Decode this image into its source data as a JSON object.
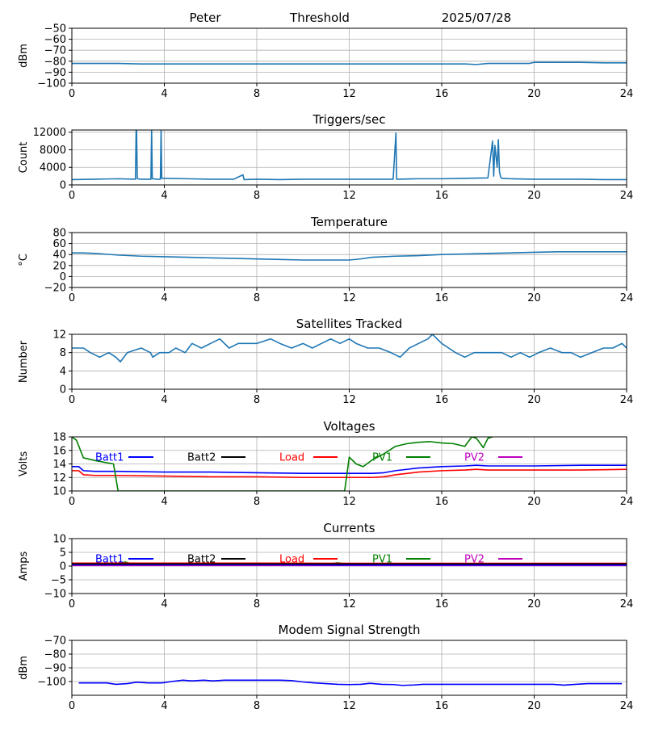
{
  "header": {
    "site": "Peter",
    "mode": "Threshold",
    "date": "2025/07/28"
  },
  "chart_data": [
    {
      "id": "threshold",
      "type": "line",
      "title": "",
      "ylabel": "dBm",
      "xlim": [
        0,
        24
      ],
      "ylim": [
        -100,
        -50
      ],
      "xticks": [
        0,
        4,
        8,
        12,
        16,
        20,
        24
      ],
      "yticks": [
        -100,
        -90,
        -80,
        -70,
        -60,
        -50
      ],
      "grid": true,
      "series": [
        {
          "color": "#1f77b4",
          "x": [
            0,
            1,
            2,
            3,
            4,
            5,
            6,
            7,
            8,
            9,
            10,
            11,
            12,
            13,
            14,
            15,
            16,
            17,
            17.5,
            18,
            19,
            19.8,
            20,
            21,
            22,
            23,
            24
          ],
          "y": [
            -82,
            -82,
            -82,
            -82.5,
            -82.5,
            -82.5,
            -82.5,
            -82.5,
            -82.5,
            -82.5,
            -82.5,
            -82.5,
            -82.5,
            -82.5,
            -82.5,
            -82.5,
            -82.5,
            -82.5,
            -83,
            -82,
            -82,
            -82,
            -81,
            -81,
            -81,
            -81.5,
            -81.5
          ]
        }
      ]
    },
    {
      "id": "triggers",
      "type": "line",
      "title": "Triggers/sec",
      "ylabel": "Count",
      "xlim": [
        0,
        24
      ],
      "ylim": [
        0,
        12500
      ],
      "xticks": [
        0,
        4,
        8,
        12,
        16,
        20,
        24
      ],
      "yticks": [
        0,
        4000,
        8000,
        12000
      ],
      "grid": true,
      "series": [
        {
          "color": "#1f77b4",
          "x": [
            0,
            1,
            2,
            2.75,
            2.78,
            2.8,
            2.83,
            3,
            3.42,
            3.45,
            3.48,
            3.7,
            3.83,
            3.86,
            3.89,
            4,
            5,
            6,
            7,
            7.4,
            7.45,
            8,
            9,
            10,
            11,
            12,
            13,
            13.9,
            14.02,
            14.05,
            14.08,
            15,
            16,
            17,
            18,
            18.2,
            18.25,
            18.3,
            18.4,
            18.45,
            18.5,
            18.55,
            18.6,
            19,
            20,
            21,
            22,
            23,
            24
          ],
          "y": [
            1200,
            1300,
            1400,
            1300,
            12500,
            12500,
            1400,
            1300,
            1300,
            12500,
            1400,
            1300,
            1300,
            12500,
            1500,
            1500,
            1400,
            1300,
            1300,
            2300,
            1200,
            1300,
            1200,
            1300,
            1300,
            1300,
            1300,
            1300,
            11800,
            1300,
            1300,
            1400,
            1400,
            1500,
            1600,
            10000,
            2000,
            9000,
            4000,
            10300,
            3000,
            1800,
            1500,
            1400,
            1300,
            1300,
            1300,
            1200,
            1200
          ]
        }
      ]
    },
    {
      "id": "temperature",
      "type": "line",
      "title": "Temperature",
      "ylabel": "°C",
      "xlim": [
        0,
        24
      ],
      "ylim": [
        -20,
        80
      ],
      "xticks": [
        0,
        4,
        8,
        12,
        16,
        20,
        24
      ],
      "yticks": [
        -20,
        0,
        20,
        40,
        60,
        80
      ],
      "grid": true,
      "series": [
        {
          "color": "#1f77b4",
          "x": [
            0,
            0.5,
            1,
            2,
            3,
            4,
            5,
            6,
            7,
            8,
            9,
            10,
            11,
            12,
            12.5,
            13,
            14,
            15,
            16,
            17,
            18,
            19,
            20,
            21,
            22,
            23,
            24
          ],
          "y": [
            43,
            43,
            42,
            39,
            37,
            36,
            35,
            34,
            33,
            32,
            31,
            30,
            30,
            30,
            32,
            35,
            37,
            38,
            40,
            41,
            42,
            43,
            44,
            45,
            45,
            45,
            45
          ]
        }
      ]
    },
    {
      "id": "satellites",
      "type": "line",
      "title": "Satellites Tracked",
      "ylabel": "Number",
      "xlim": [
        0,
        24
      ],
      "ylim": [
        0,
        12
      ],
      "xticks": [
        0,
        4,
        8,
        12,
        16,
        20,
        24
      ],
      "yticks": [
        0,
        4,
        8,
        12
      ],
      "grid": true,
      "series": [
        {
          "color": "#1f77b4",
          "x": [
            0,
            0.5,
            0.8,
            1.2,
            1.6,
            1.9,
            2.1,
            2.4,
            3,
            3.4,
            3.5,
            3.8,
            4.2,
            4.5,
            4.9,
            5.2,
            5.6,
            6,
            6.4,
            6.8,
            7.2,
            7.6,
            8,
            8.6,
            9,
            9.5,
            10,
            10.4,
            10.8,
            11.2,
            11.6,
            12,
            12.3,
            12.8,
            13.3,
            13.8,
            14.2,
            14.6,
            15,
            15.4,
            15.6,
            16,
            16.3,
            16.6,
            17,
            17.4,
            17.8,
            18.2,
            18.6,
            19,
            19.4,
            19.8,
            20.2,
            20.7,
            21.2,
            21.6,
            22,
            22.5,
            23,
            23.4,
            23.8,
            24
          ],
          "y": [
            9,
            9,
            8,
            7,
            8,
            7,
            6,
            8,
            9,
            8,
            7,
            8,
            8,
            9,
            8,
            10,
            9,
            10,
            11,
            9,
            10,
            10,
            10,
            11,
            10,
            9,
            10,
            9,
            10,
            11,
            10,
            11,
            10,
            9,
            9,
            8,
            7,
            9,
            10,
            11,
            12,
            10,
            9,
            8,
            7,
            8,
            8,
            8,
            8,
            7,
            8,
            7,
            8,
            9,
            8,
            8,
            7,
            8,
            9,
            9,
            10,
            9
          ]
        }
      ]
    },
    {
      "id": "voltages",
      "type": "line",
      "title": "Voltages",
      "ylabel": "Volts",
      "xlim": [
        0,
        24
      ],
      "ylim": [
        10,
        18
      ],
      "xticks": [
        0,
        4,
        8,
        12,
        16,
        20,
        24
      ],
      "yticks": [
        10,
        12,
        14,
        16,
        18
      ],
      "grid": true,
      "legend": [
        "Batt1",
        "Batt2",
        "Load",
        "PV1",
        "PV2"
      ],
      "series": [
        {
          "name": "Batt1",
          "color": "#0000ff",
          "x": [
            0,
            0.3,
            0.5,
            1,
            2,
            4,
            6,
            8,
            10,
            12,
            13,
            13.5,
            14,
            15,
            16,
            17,
            17.5,
            18,
            19,
            20,
            22,
            24
          ],
          "y": [
            13.6,
            13.6,
            13.0,
            12.9,
            12.9,
            12.8,
            12.8,
            12.7,
            12.6,
            12.6,
            12.6,
            12.7,
            13.0,
            13.4,
            13.6,
            13.7,
            13.8,
            13.7,
            13.7,
            13.7,
            13.8,
            13.8
          ]
        },
        {
          "name": "Load",
          "color": "#ff0000",
          "x": [
            0,
            0.3,
            0.5,
            1,
            2,
            4,
            6,
            8,
            10,
            12,
            13,
            13.5,
            14,
            15,
            16,
            17,
            17.5,
            18,
            19,
            20,
            22,
            24
          ],
          "y": [
            13.0,
            13.0,
            12.4,
            12.3,
            12.3,
            12.2,
            12.1,
            12.1,
            12.0,
            12.0,
            12.0,
            12.1,
            12.4,
            12.8,
            13.0,
            13.1,
            13.2,
            13.1,
            13.1,
            13.1,
            13.1,
            13.2
          ]
        },
        {
          "name": "PV1",
          "color": "#008000",
          "x": [
            0,
            0.2,
            0.5,
            1,
            1.8,
            2.0,
            11.8,
            12.0,
            12.3,
            12.6,
            13.0,
            13.5,
            14,
            14.5,
            15,
            15.5,
            16,
            16.5,
            17,
            17.3,
            17.5,
            17.8,
            18,
            18.2
          ],
          "y": [
            18,
            17.5,
            14.9,
            14.5,
            14.0,
            10.0,
            10.0,
            15.0,
            14.0,
            13.6,
            14.6,
            15.5,
            16.6,
            17.0,
            17.2,
            17.3,
            17.1,
            17.0,
            16.6,
            18,
            17.8,
            16.4,
            17.8,
            18
          ]
        }
      ]
    },
    {
      "id": "currents",
      "type": "line",
      "title": "Currents",
      "ylabel": "Amps",
      "xlim": [
        0,
        24
      ],
      "ylim": [
        -10,
        10
      ],
      "xticks": [
        0,
        4,
        8,
        12,
        16,
        20,
        24
      ],
      "yticks": [
        -10,
        -5,
        0,
        5,
        10
      ],
      "grid": true,
      "legend": [
        "Batt1",
        "Batt2",
        "Load",
        "PV1",
        "PV2"
      ],
      "series": [
        {
          "name": "PV2",
          "color": "#bf00bf",
          "x": [
            0,
            24
          ],
          "y": [
            0.2,
            0.2
          ]
        },
        {
          "name": "PV1",
          "color": "#008000",
          "x": [
            0,
            2,
            2.3,
            2.6,
            4,
            11,
            11.5,
            12,
            24
          ],
          "y": [
            0.6,
            0.6,
            1.5,
            0.8,
            0.6,
            0.6,
            1.2,
            0.6,
            0.6
          ]
        },
        {
          "name": "Batt1",
          "color": "#0000ff",
          "x": [
            0,
            4,
            8,
            12,
            16,
            20,
            24
          ],
          "y": [
            0.5,
            0.5,
            0.5,
            0.4,
            0.4,
            0.4,
            0.4
          ]
        },
        {
          "name": "Load",
          "color": "#ff0000",
          "x": [
            0,
            4,
            8,
            12,
            16,
            20,
            24
          ],
          "y": [
            1.1,
            1.1,
            1.1,
            1.0,
            1.0,
            1.0,
            1.0
          ]
        },
        {
          "name": "Batt2",
          "color": "#000000",
          "x": [
            0,
            12,
            24
          ],
          "y": [
            0.8,
            0.8,
            0.8
          ]
        }
      ]
    },
    {
      "id": "modem",
      "type": "line",
      "title": "Modem Signal Strength",
      "ylabel": "dBm",
      "xlim": [
        0,
        24
      ],
      "ylim": [
        -110,
        -70
      ],
      "xticks": [
        0,
        4,
        8,
        12,
        16,
        20,
        24
      ],
      "yticks": [
        -100,
        -90,
        -80,
        -70
      ],
      "grid": true,
      "series": [
        {
          "color": "#0000ff",
          "x": [
            0.3,
            1.5,
            1.9,
            2.4,
            2.8,
            3.3,
            3.9,
            4.3,
            4.8,
            5.2,
            5.7,
            6.1,
            6.6,
            7.0,
            8.0,
            9.0,
            9.5,
            10.0,
            10.5,
            11.0,
            11.5,
            12.0,
            12.5,
            12.9,
            13.4,
            13.9,
            14.3,
            14.8,
            15.2,
            16.0,
            17.0,
            18.0,
            19.0,
            20.0,
            20.8,
            21.3,
            21.8,
            22.3,
            23.0,
            23.8
          ],
          "y": [
            -101,
            -101,
            -102,
            -101.5,
            -100.5,
            -101,
            -101,
            -100,
            -99,
            -99.5,
            -99,
            -99.5,
            -99,
            -99,
            -99,
            -99,
            -99.3,
            -100.3,
            -101,
            -101.5,
            -102,
            -102.2,
            -102,
            -101.3,
            -102,
            -102.2,
            -102.8,
            -102.5,
            -102,
            -102,
            -102,
            -102,
            -102,
            -102,
            -102,
            -102.6,
            -102,
            -101.5,
            -101.5,
            -101.5
          ]
        }
      ]
    }
  ]
}
